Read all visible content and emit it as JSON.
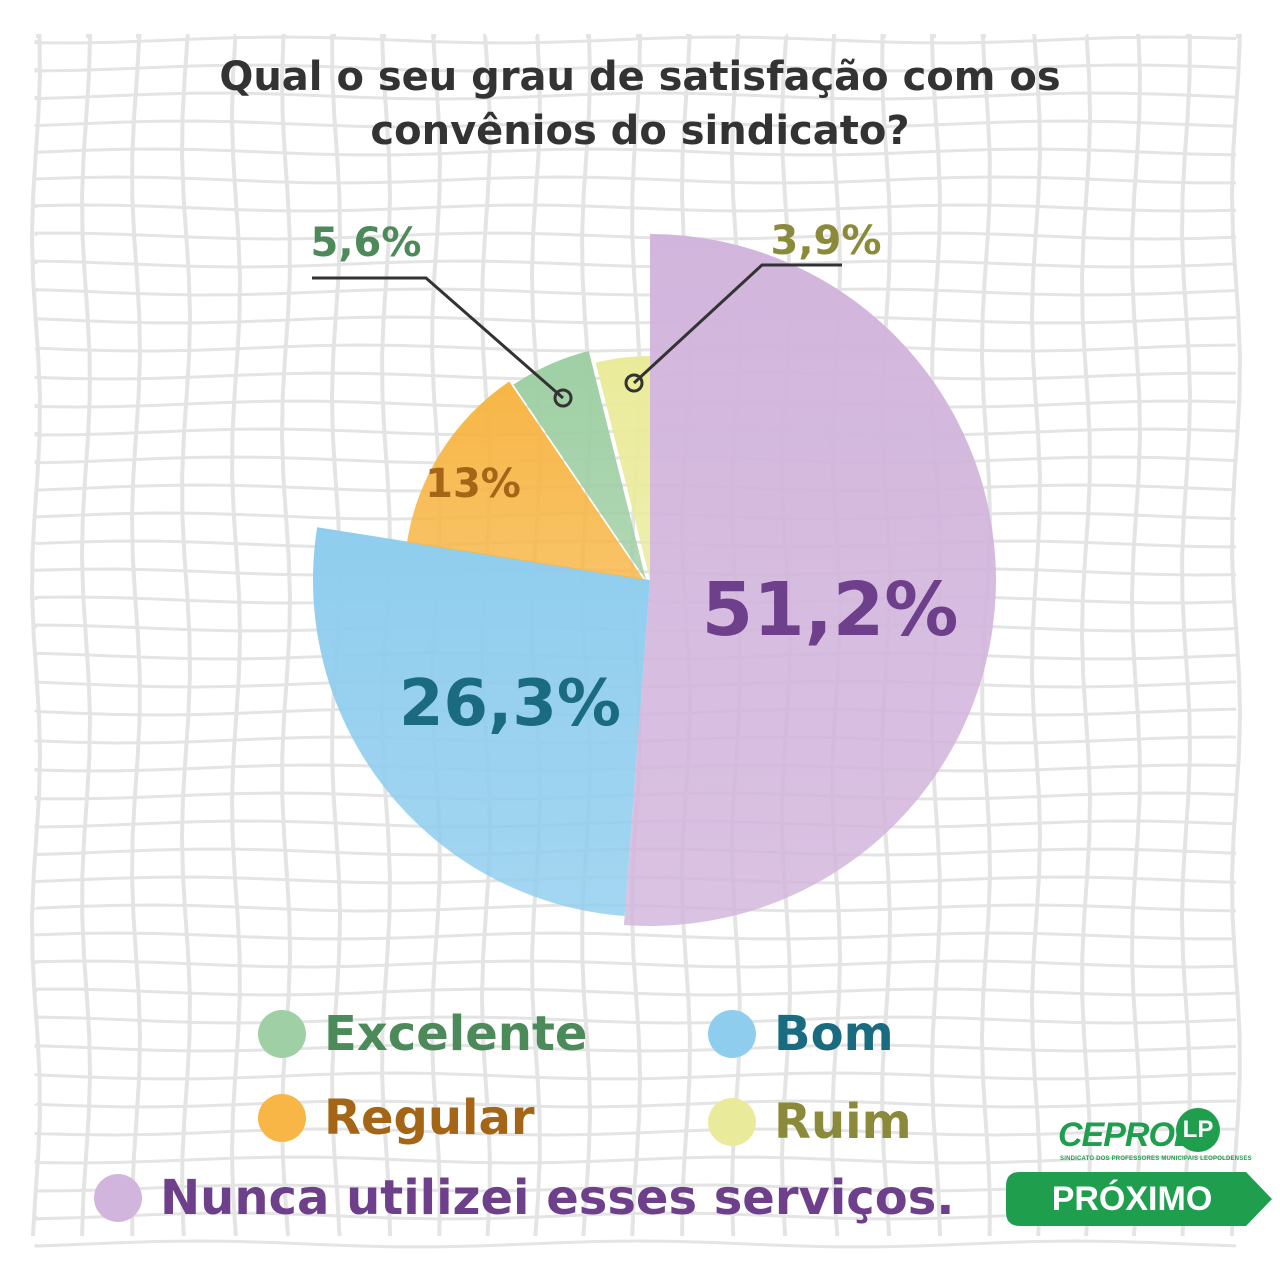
{
  "title_lines": [
    "Qual o seu grau de satisfação com os",
    "convênios do sindicato?"
  ],
  "chart_data": {
    "type": "pie",
    "slices": [
      {
        "label": "Nunca utilizei esses serviços.",
        "value": 51.2,
        "value_label": "51,2%",
        "color": "#d2b5dc",
        "text_color": "#6e3f8a"
      },
      {
        "label": "Bom",
        "value": 26.3,
        "value_label": "26,3%",
        "color": "#8fcdee",
        "text_color": "#1a6b80"
      },
      {
        "label": "Regular",
        "value": 13,
        "value_label": "13%",
        "color": "#f7b646",
        "text_color": "#a56517"
      },
      {
        "label": "Excelente",
        "value": 5.6,
        "value_label": "5,6%",
        "color": "#9fcfa4",
        "text_color": "#4d8a5a"
      },
      {
        "label": "Ruim",
        "value": 3.9,
        "value_label": "3,9%",
        "color": "#eaeb9a",
        "text_color": "#8a8a3a"
      }
    ],
    "legend": [
      {
        "label": "Excelente",
        "color": "#9fcfa4",
        "text_color": "#4d8a5a"
      },
      {
        "label": "Bom",
        "color": "#8fcdee",
        "text_color": "#1a6b80"
      },
      {
        "label": "Regular",
        "color": "#f7b646",
        "text_color": "#a56517"
      },
      {
        "label": "Ruim",
        "color": "#eaeb9a",
        "text_color": "#8a8a3a"
      },
      {
        "label": "Nunca utilizei esses serviços.",
        "color": "#d2b5dc",
        "text_color": "#6e3f8a"
      }
    ]
  },
  "brand": {
    "logo_text": "CEPROL",
    "logo_mark": "LP",
    "logo_subtitle": "SINDICATO DOS PROFESSORES MUNICIPAIS LEOPOLDENSES",
    "accent": "#1f9e4e"
  },
  "next_button": {
    "label": "PRÓXIMO"
  }
}
